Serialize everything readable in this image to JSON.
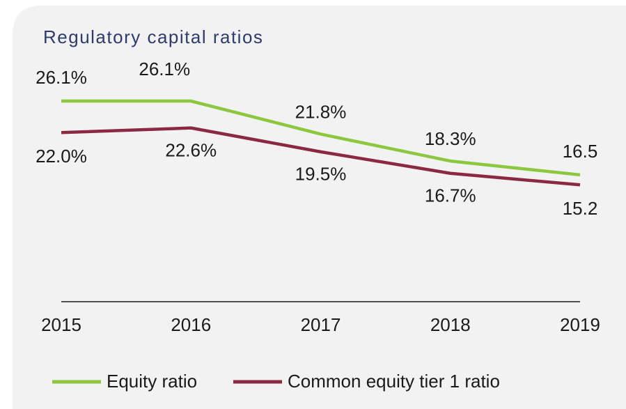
{
  "chart_data": {
    "type": "line",
    "title": "Regulatory capital ratios",
    "categories": [
      "2015",
      "2016",
      "2017",
      "2018",
      "2019"
    ],
    "series": [
      {
        "name": "Equity ratio",
        "color": "#8dc63f",
        "values": [
          26.1,
          26.1,
          21.8,
          18.3,
          16.5
        ],
        "value_labels": [
          "26.1%",
          "26.1%",
          "21.8%",
          "18.3%",
          "16.5"
        ]
      },
      {
        "name": "Common equity tier 1 ratio",
        "color": "#8b2942",
        "values": [
          22.0,
          22.6,
          19.5,
          16.7,
          15.2
        ],
        "value_labels": [
          "22.0%",
          "22.6%",
          "19.5%",
          "16.7%",
          "15.2"
        ]
      }
    ],
    "ylim": [
      0,
      30
    ],
    "legend": "bottom"
  }
}
